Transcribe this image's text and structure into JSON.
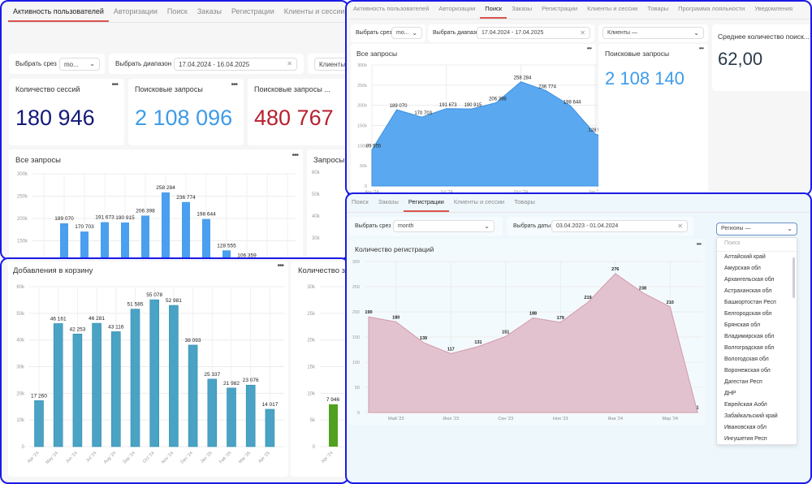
{
  "activity": {
    "tabs": [
      "Активность пользователей",
      "Авторизации",
      "Поиск",
      "Заказы",
      "Регистрации",
      "Клиенты и сессии"
    ],
    "active_tab": 0,
    "slice_label": "Выбрать срез",
    "slice_value": "mo...",
    "range_label": "Выбрать диапазон",
    "range_value": "17.04.2024 - 16.04.2025",
    "clients_label": "Клиенты",
    "kpis": [
      {
        "title": "Количество сессий",
        "value": "180 946",
        "color": "#141a7a"
      },
      {
        "title": "Поисковые запросы",
        "value": "2 108 096",
        "color": "#3d9be9"
      },
      {
        "title": "Поисковые запросы ...",
        "value": "480 767",
        "color": "#b8202f"
      }
    ],
    "chart_title": "Все запросы",
    "side_chart_title": "Запросы",
    "side_ticks": [
      "60k",
      "50k",
      "40k",
      "30k"
    ]
  },
  "search": {
    "tabs": [
      "Активность пользователей",
      "Авторизации",
      "Поиск",
      "Заказы",
      "Регистрации",
      "Клиенты и сессии",
      "Товары",
      "Программа лояльности",
      "Уведомления"
    ],
    "active_tab": 2,
    "slice_label": "Выбрать срез",
    "slice_value": "mo...",
    "range_label": "Выбрать диапазон",
    "range_value": "17.04.2024 - 17.04.2025",
    "clients_value": "Клиенты —",
    "kpi": {
      "title": "Поисковые запросы",
      "value": "2 108 140",
      "color": "#3d9be9"
    },
    "avg": {
      "title": "Среднее количество поиск...",
      "value": "62,00",
      "color": "#2a3a4a"
    }
  },
  "cart": {
    "side_chart_title": "Количество за",
    "side_ticks": [
      "30k",
      "25k",
      "20k",
      "15k",
      "10k",
      "5k",
      "0"
    ],
    "side_bar": {
      "label": "Apr '24",
      "value": 7946,
      "display": "7 946",
      "color": "#52a01f"
    }
  },
  "registrations": {
    "tabs": [
      "Поиск",
      "Заказы",
      "Регистрации",
      "Клиенты и сессии",
      "Товары"
    ],
    "active_tab": 2,
    "slice_label": "Выбрать срез",
    "slice_value": "month",
    "dates_label": "Выбрать даты",
    "dates_value": "03.04.2023 - 01.04.2024",
    "regions_value": "Регионы —",
    "search_placeholder": "Поиск",
    "regions": [
      "Алтайский край",
      "Амурская обл",
      "Архангельская обл",
      "Астраханская обл",
      "Башкортостан Респ",
      "Белгородская обл",
      "Брянская обл",
      "Владимирская обл",
      "Волгоградская обл",
      "Вологодская обл",
      "Воронежская обл",
      "Дагестан Респ",
      "ДНР",
      "Еврейская Аобл",
      "Забайкальский край",
      "Ивановская обл",
      "Ингушетия Респ"
    ]
  },
  "chart_data": [
    {
      "type": "bar",
      "title": "Все запросы",
      "categories": [
        "Apr '24",
        "May '24",
        "Jun '24",
        "Jul '24",
        "Aug '24",
        "Sep '24",
        "Oct '24",
        "Nov '24",
        "Dec '24",
        "Jan '25",
        "Feb '25"
      ],
      "values": [
        89555,
        189070,
        170703,
        191673,
        190915,
        206398,
        258284,
        236774,
        198644,
        128555,
        106359
      ],
      "labels": [
        "89 555",
        "189 070",
        "170 703",
        "191 673",
        "190 915",
        "206 398",
        "258 284",
        "236 774",
        "198 644",
        "128 555",
        "106 359"
      ],
      "ylim": [
        0,
        300000
      ],
      "yticks": [
        "300k",
        "250k",
        "200k",
        "150k"
      ],
      "color": "#4a9fee",
      "grid": true
    },
    {
      "type": "area",
      "title": "Все запросы",
      "categories": [
        "Apr '24",
        "May '24",
        "Jun '24",
        "Jul '24",
        "Aug '24",
        "Sep '24",
        "Oct '24",
        "Nov '24",
        "Dec '24",
        "Jan '25",
        "Feb '25",
        "Mar '25",
        "Apr '25"
      ],
      "values": [
        89555,
        189070,
        170703,
        191673,
        190915,
        206398,
        258284,
        236774,
        198644,
        128555,
        106359,
        98965,
        51325
      ],
      "labels": [
        "89 555",
        "189 070",
        "170 703",
        "191 673",
        "190 915",
        "206 398",
        "258 284",
        "236 774",
        "198 644",
        "128 555",
        "106 359",
        "98 965",
        "51 325"
      ],
      "xticks": [
        "Apr '24",
        "Jul '24",
        "Oct '24",
        "Jan '25",
        "Apr '25"
      ],
      "ylim": [
        0,
        300000
      ],
      "yticks": [
        "300k",
        "250k",
        "200k",
        "150k",
        "100k",
        "50k",
        "0"
      ],
      "color": "#5aa8ef",
      "grid": true
    },
    {
      "type": "bar",
      "title": "Добавления в корзину",
      "categories": [
        "Apr '24",
        "May '24",
        "Jun '24",
        "Jul '24",
        "Aug '24",
        "Sep '24",
        "Oct '24",
        "Nov '24",
        "Dec '24",
        "Jan '25",
        "Feb '25",
        "Mar '25",
        "Apr '25"
      ],
      "values": [
        17260,
        46161,
        42253,
        46281,
        43116,
        51585,
        55078,
        52981,
        38093,
        25337,
        21982,
        23076,
        14017
      ],
      "labels": [
        "17 260",
        "46 161",
        "42 253",
        "46 281",
        "43 116",
        "51 585",
        "55 078",
        "52 981",
        "38 093",
        "25 337",
        "21 982",
        "23 076",
        "14 017"
      ],
      "ylim": [
        0,
        60000
      ],
      "yticks": [
        "60k",
        "50k",
        "40k",
        "30k",
        "20k",
        "10k",
        "0"
      ],
      "color": "#4aa3c4",
      "grid": true
    },
    {
      "type": "area",
      "title": "Количество регистраций",
      "categories": [
        "Апр '23",
        "Май '23",
        "Июн '23",
        "Июл '23",
        "Авг '23",
        "Сен '23",
        "Окт '23",
        "Ноя '23",
        "Дек '23",
        "Янв '24",
        "Фев '24",
        "Мар '24",
        "Апр '24"
      ],
      "values": [
        190,
        180,
        139,
        117,
        131,
        151,
        188,
        179,
        219,
        276,
        238,
        210,
        1
      ],
      "xticks": [
        "Май '23",
        "Июл '23",
        "Сен '23",
        "Ноя '23",
        "Янв '24",
        "Мар '24"
      ],
      "ylim": [
        0,
        300
      ],
      "yticks": [
        "300",
        "250",
        "200",
        "150",
        "100",
        "50",
        "0"
      ],
      "color": "#e2c2cf",
      "grid": true
    }
  ]
}
